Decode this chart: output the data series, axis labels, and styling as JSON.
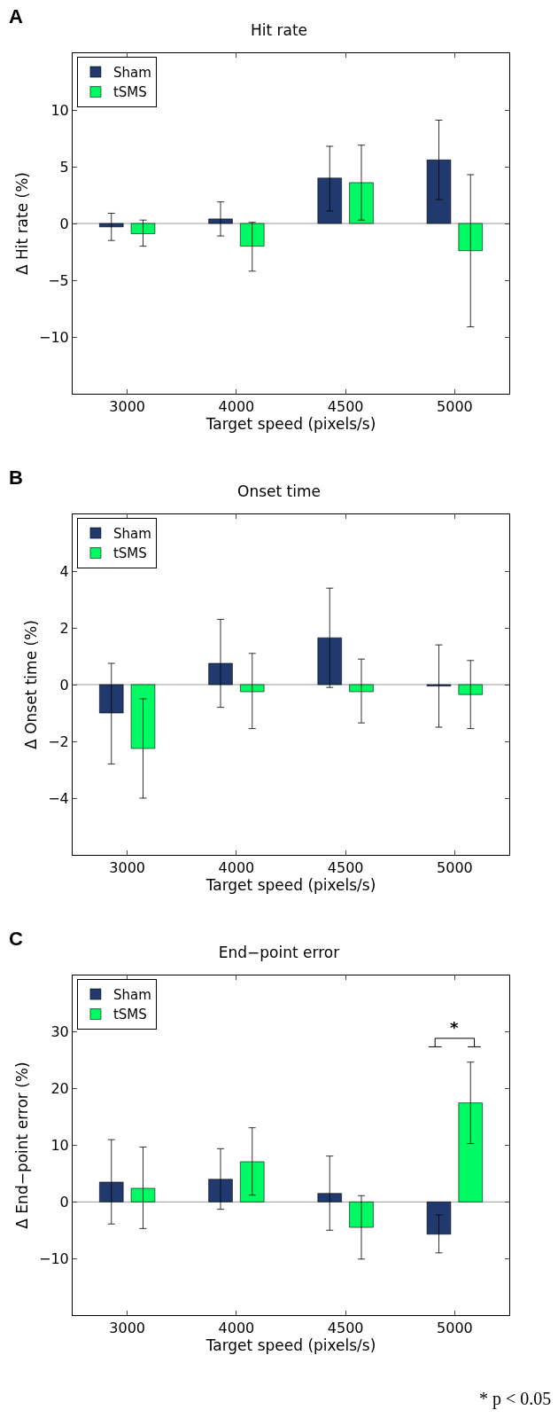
{
  "chart_data": [
    {
      "type": "bar",
      "title": "Hit rate",
      "xlabel": "Target speed (pixels/s)",
      "ylabel": "Δ Hit rate (%)",
      "annotations": [
        "A"
      ],
      "categories": [
        "3000",
        "4000",
        "4500",
        "5000"
      ],
      "series": [
        {
          "name": "Sham",
          "color": "#213a6e",
          "values": [
            -0.3,
            0.4,
            4.0,
            5.6
          ],
          "errors": [
            [
              -1.5,
              0.9
            ],
            [
              -1.1,
              1.9
            ],
            [
              1.1,
              6.8
            ],
            [
              2.1,
              9.1
            ]
          ]
        },
        {
          "name": "tSMS",
          "color": "#00fa64",
          "values": [
            -0.9,
            -2.0,
            3.6,
            -2.4
          ],
          "errors": [
            [
              -2.0,
              0.3
            ],
            [
              -4.2,
              0.1
            ],
            [
              0.3,
              6.9
            ],
            [
              -9.1,
              4.3
            ]
          ]
        }
      ],
      "ylim": [
        -15,
        15
      ],
      "yticks": [
        -10,
        -5,
        0,
        5,
        10
      ],
      "legend": "top left",
      "ref_lines": [
        {
          "axis": "y",
          "value": 0,
          "color": "#999999"
        }
      ]
    },
    {
      "type": "bar",
      "title": "Onset time",
      "xlabel": "Target speed (pixels/s)",
      "ylabel": "Δ Onset time (%)",
      "annotations": [
        "B"
      ],
      "categories": [
        "3000",
        "4000",
        "4500",
        "5000"
      ],
      "series": [
        {
          "name": "Sham",
          "color": "#213a6e",
          "values": [
            -1.0,
            0.75,
            1.65,
            -0.05
          ],
          "errors": [
            [
              -2.8,
              0.75
            ],
            [
              -0.8,
              2.3
            ],
            [
              -0.1,
              3.4
            ],
            [
              -1.5,
              1.4
            ]
          ]
        },
        {
          "name": "tSMS",
          "color": "#00fa64",
          "values": [
            -2.25,
            -0.25,
            -0.25,
            -0.35
          ],
          "errors": [
            [
              -4.0,
              -0.5
            ],
            [
              -1.55,
              1.1
            ],
            [
              -1.35,
              0.9
            ],
            [
              -1.55,
              0.85
            ]
          ]
        }
      ],
      "ylim": [
        -6,
        6
      ],
      "yticks": [
        -4,
        -2,
        0,
        2,
        4
      ],
      "legend": "top left",
      "ref_lines": [
        {
          "axis": "y",
          "value": 0,
          "color": "#999999"
        }
      ]
    },
    {
      "type": "bar",
      "title": "End−point error",
      "xlabel": "Target speed (pixels/s)",
      "ylabel": "Δ End−point error (%)",
      "annotations": [
        "C",
        "*",
        "* p < 0.05"
      ],
      "categories": [
        "3000",
        "4000",
        "4500",
        "5000"
      ],
      "series": [
        {
          "name": "Sham",
          "color": "#213a6e",
          "values": [
            3.5,
            4.0,
            1.5,
            -5.7
          ],
          "errors": [
            [
              -3.9,
              11.0
            ],
            [
              -1.3,
              9.4
            ],
            [
              -5.0,
              8.1
            ],
            [
              -9.0,
              -2.3
            ]
          ]
        },
        {
          "name": "tSMS",
          "color": "#00fa64",
          "values": [
            2.4,
            7.1,
            -4.5,
            17.5
          ],
          "errors": [
            [
              -4.7,
              9.7
            ],
            [
              1.2,
              13.1
            ],
            [
              -10.1,
              1.1
            ],
            [
              10.3,
              24.7
            ]
          ]
        }
      ],
      "ylim": [
        -20,
        40
      ],
      "yticks": [
        -10,
        0,
        10,
        20,
        30
      ],
      "legend": "top left",
      "ref_lines": [
        {
          "axis": "y",
          "value": 0,
          "color": "#999999"
        }
      ]
    }
  ]
}
